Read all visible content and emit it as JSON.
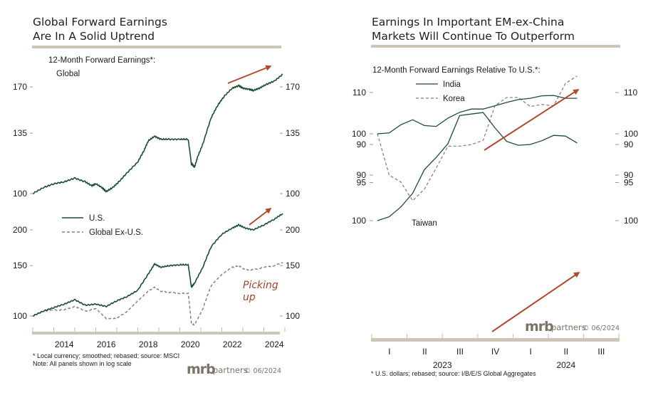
{
  "colors": {
    "line_main": "#1b4d32",
    "line_dashed": "#8c8270",
    "arrow": "#b04a2e",
    "band": "#cdc6b7",
    "logo": "#7a7466"
  },
  "left": {
    "title_line1": "Global Forward Earnings",
    "title_line2": "Are In A Solid Uptrend",
    "subtitle": "12-Month Forward Earnings*:",
    "panel1_label": "Global",
    "legend_us": "U.S.",
    "legend_exus": "Global Ex-U.S.",
    "annotation": [
      "Picking",
      "up"
    ],
    "footnote1": "* Local currency; smoothed; rebased; source: MSCI",
    "footnote2": "Note: All panels shown in log scale",
    "x_ticks": [
      "2014",
      "2016",
      "2018",
      "2020",
      "2022",
      "2024"
    ],
    "y1_ticks": [
      "170",
      "135",
      "100"
    ],
    "y2_ticks": [
      "200",
      "150",
      "100"
    ]
  },
  "right": {
    "title_line1": "Earnings In Important EM-ex-China",
    "title_line2": "Markets Will Continue To Outperform",
    "subtitle": "12-Month Forward Earnings Relative To U.S.*:",
    "legend_india": "India",
    "legend_korea": "Korea",
    "panel2_label": "Taiwan",
    "footnote": "* U.S. dollars; rebased; source: I/B/E/S Global Aggregates",
    "quarters": [
      "I",
      "II",
      "III",
      "IV",
      "I",
      "II",
      "III"
    ],
    "years": [
      "2023",
      "2024"
    ],
    "y1_ticks": [
      "110",
      "100",
      "90"
    ],
    "y2_ticks": [
      "100",
      "95",
      "90"
    ]
  },
  "logo": {
    "brand": "mrb",
    "partners": "partners",
    "copyright": "© 06/2024"
  },
  "chart_data": [
    {
      "type": "line",
      "title": "Global Forward Earnings Are In A Solid Uptrend — Global",
      "ylabel": "12-Month Forward Earnings (log scale)",
      "ylim": [
        97,
        182
      ],
      "x": [
        2012.5,
        2013.0,
        2013.5,
        2014.0,
        2014.5,
        2015.0,
        2015.3,
        2015.5,
        2015.8,
        2016.0,
        2016.3,
        2016.6,
        2017.0,
        2017.5,
        2017.8,
        2018.0,
        2018.3,
        2018.6,
        2019.0,
        2019.5,
        2019.9,
        2020.05,
        2020.2,
        2020.35,
        2020.6,
        2021.0,
        2021.3,
        2021.6,
        2022.0,
        2022.3,
        2022.5,
        2022.8,
        2023.0,
        2023.3,
        2023.6,
        2024.0,
        2024.4
      ],
      "series": [
        {
          "name": "Global",
          "values": [
            100,
            103,
            105,
            106,
            108,
            106,
            104,
            105,
            103,
            101,
            103,
            106,
            111,
            117,
            124,
            130,
            133,
            131,
            131,
            131,
            131,
            116,
            114,
            120,
            128,
            146,
            155,
            162,
            169,
            171,
            169,
            168,
            167,
            169,
            172,
            175,
            181
          ]
        }
      ]
    },
    {
      "type": "line",
      "title": "U.S. vs Global Ex-U.S.",
      "ylim": [
        95,
        240
      ],
      "x": [
        2012.5,
        2013.0,
        2013.5,
        2014.0,
        2014.5,
        2015.0,
        2015.5,
        2016.0,
        2016.5,
        2017.0,
        2017.5,
        2018.0,
        2018.3,
        2018.6,
        2019.0,
        2019.5,
        2019.9,
        2020.05,
        2020.2,
        2020.6,
        2021.0,
        2021.5,
        2022.0,
        2022.3,
        2022.6,
        2023.0,
        2023.5,
        2024.0,
        2024.4
      ],
      "series": [
        {
          "name": "U.S.",
          "values": [
            100,
            104,
            107,
            110,
            114,
            109,
            110,
            108,
            113,
            117,
            123,
            140,
            152,
            148,
            150,
            151,
            151,
            126,
            130,
            148,
            175,
            193,
            203,
            208,
            203,
            200,
            208,
            218,
            228
          ]
        },
        {
          "name": "Global Ex-U.S.",
          "values": [
            100,
            104,
            105,
            105,
            108,
            104,
            106,
            98,
            98,
            104,
            113,
            122,
            126,
            122,
            121,
            120,
            120,
            94,
            93,
            106,
            128,
            140,
            148,
            150,
            145,
            145,
            148,
            150,
            154
          ]
        }
      ]
    },
    {
      "type": "line",
      "title": "12-Month Forward Earnings Relative To U.S.",
      "ylim": [
        83,
        115
      ],
      "x": [
        "2023-01",
        "2023-02",
        "2023-03",
        "2023-04",
        "2023-05",
        "2023-06",
        "2023-07",
        "2023-08",
        "2023-09",
        "2023-10",
        "2023-11",
        "2023-12",
        "2024-01",
        "2024-02",
        "2024-03",
        "2024-04",
        "2024-05",
        "2024-06"
      ],
      "series": [
        {
          "name": "India",
          "values": [
            100,
            100.2,
            102.2,
            103.4,
            102.0,
            101.8,
            103.8,
            105.2,
            106.0,
            106.0,
            106.8,
            107.6,
            108.3,
            108.6,
            109.2,
            109.3,
            108.6,
            108.6
          ]
        },
        {
          "name": "Korea",
          "values": [
            100,
            90.0,
            88.3,
            83.8,
            86.6,
            91.7,
            97.0,
            97.0,
            97.4,
            98.4,
            106.8,
            108.8,
            108.8,
            106.6,
            107.1,
            106.8,
            112.2,
            114.0
          ]
        }
      ]
    },
    {
      "type": "line",
      "title": "Taiwan",
      "ylim": [
        84,
        101
      ],
      "x": [
        "2023-01",
        "2023-02",
        "2023-03",
        "2023-04",
        "2023-05",
        "2023-06",
        "2023-07",
        "2023-08",
        "2023-09",
        "2023-10",
        "2023-11",
        "2023-12",
        "2024-01",
        "2024-02",
        "2024-03",
        "2024-04",
        "2024-05",
        "2024-06"
      ],
      "series": [
        {
          "name": "Taiwan",
          "values": [
            100,
            99.5,
            98.2,
            96.4,
            93.3,
            91.7,
            89.9,
            86.2,
            86.0,
            85.8,
            87.8,
            89.6,
            90.1,
            90.0,
            89.5,
            88.8,
            88.9,
            89.8
          ]
        }
      ]
    }
  ]
}
